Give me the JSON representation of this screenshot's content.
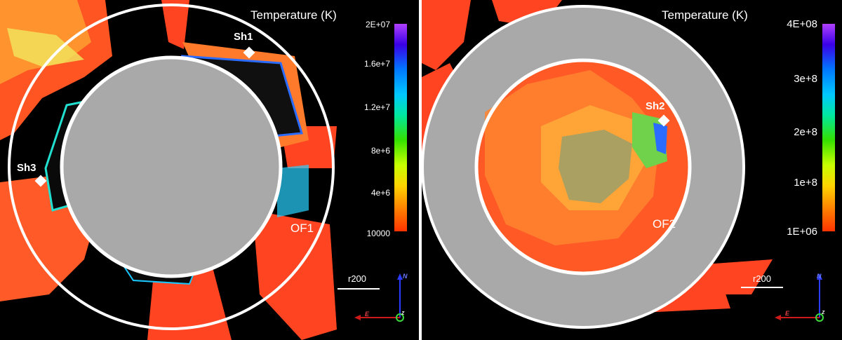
{
  "left": {
    "colorbar_title": "Temperature (K)",
    "ticks": [
      "2E+07",
      "1.6e+7",
      "1.2e+7",
      "8e+6",
      "4e+6",
      "10000"
    ],
    "markers": [
      "Sh1",
      "Sh3"
    ],
    "outflow_label": "OF1",
    "scale_label": "r200",
    "compass": {
      "north": "N",
      "east": "E",
      "z": "z"
    }
  },
  "right": {
    "colorbar_title": "Temperature (K)",
    "ticks": [
      "4E+08",
      "3e+8",
      "2e+8",
      "1e+8",
      "1E+06"
    ],
    "markers": [
      "Sh2"
    ],
    "outflow_label": "OF2",
    "scale_label": "r200",
    "compass": {
      "north": "N",
      "east": "E",
      "z": "z"
    }
  },
  "colors": {
    "hot": "#ff4422",
    "mask": "#a9a9a9",
    "ring": "#ffffff",
    "background": "#000000"
  }
}
